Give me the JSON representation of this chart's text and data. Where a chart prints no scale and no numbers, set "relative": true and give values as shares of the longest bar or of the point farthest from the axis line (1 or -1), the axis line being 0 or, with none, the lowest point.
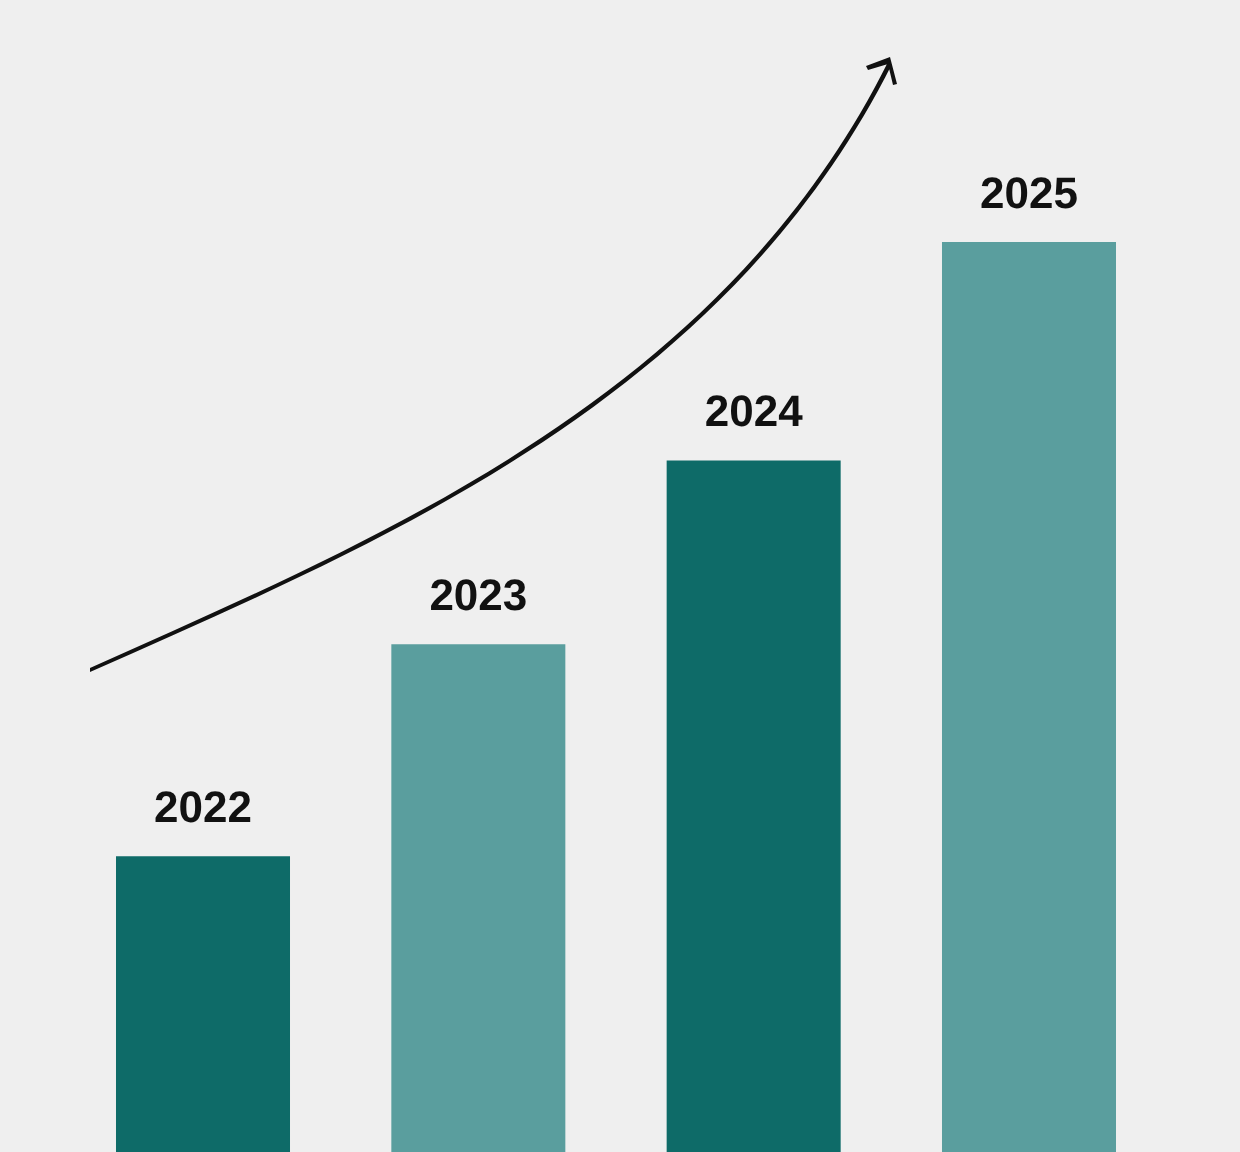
{
  "chart_data": {
    "type": "bar",
    "relative": true,
    "data_labels": false,
    "categories": [
      "2022",
      "2023",
      "2024",
      "2025"
    ],
    "values": [
      0.325,
      0.558,
      0.76,
      1
    ],
    "colors": [
      "#0e6b68",
      "#5a9e9e",
      "#0e6b68",
      "#5a9e9e"
    ]
  }
}
